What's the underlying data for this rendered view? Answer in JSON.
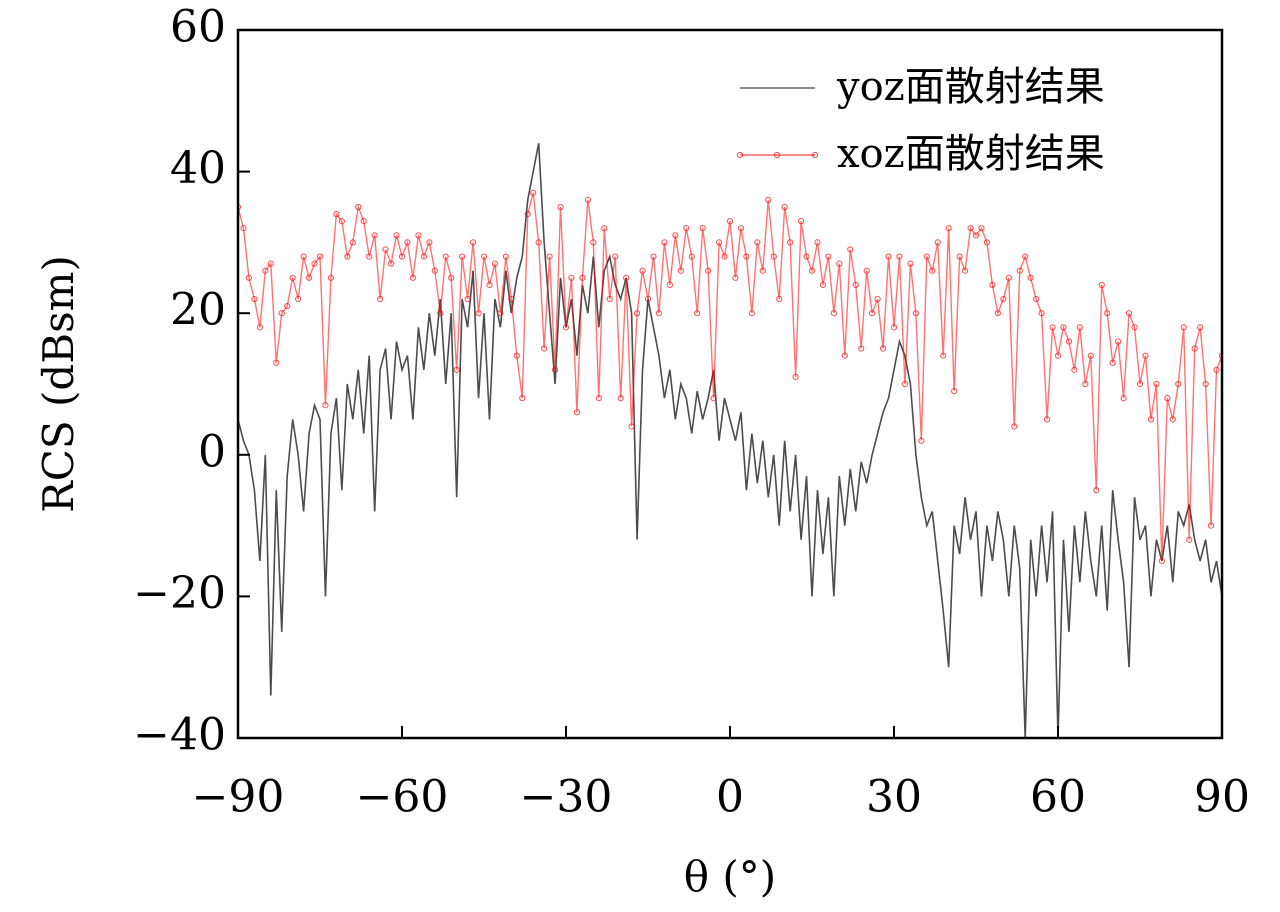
{
  "chart_data": {
    "type": "line",
    "xlabel": "θ (°)",
    "ylabel": "RCS (dBsm)",
    "xlim": [
      -90,
      90
    ],
    "ylim": [
      -40,
      60
    ],
    "xticks": [
      {
        "value": -90,
        "label": "−90"
      },
      {
        "value": -60,
        "label": "−60"
      },
      {
        "value": -30,
        "label": "−30"
      },
      0,
      30,
      60,
      90
    ],
    "yticks": [
      {
        "value": -40,
        "label": "−40"
      },
      {
        "value": -20,
        "label": "−20"
      },
      0,
      20,
      40,
      60
    ],
    "legend": "upper right",
    "x": [
      -90,
      -89,
      -88,
      -87,
      -86,
      -85,
      -84,
      -83,
      -82,
      -81,
      -80,
      -79,
      -78,
      -77,
      -76,
      -75,
      -74,
      -73,
      -72,
      -71,
      -70,
      -69,
      -68,
      -67,
      -66,
      -65,
      -64,
      -63,
      -62,
      -61,
      -60,
      -59,
      -58,
      -57,
      -56,
      -55,
      -54,
      -53,
      -52,
      -51,
      -50,
      -49,
      -48,
      -47,
      -46,
      -45,
      -44,
      -43,
      -42,
      -41,
      -40,
      -39,
      -38,
      -37,
      -36,
      -35,
      -34,
      -33,
      -32,
      -31,
      -30,
      -29,
      -28,
      -27,
      -26,
      -25,
      -24,
      -23,
      -22,
      -21,
      -20,
      -19,
      -18,
      -17,
      -16,
      -15,
      -14,
      -13,
      -12,
      -11,
      -10,
      -9,
      -8,
      -7,
      -6,
      -5,
      -4,
      -3,
      -2,
      -1,
      0,
      1,
      2,
      3,
      4,
      5,
      6,
      7,
      8,
      9,
      10,
      11,
      12,
      13,
      14,
      15,
      16,
      17,
      18,
      19,
      20,
      21,
      22,
      23,
      24,
      25,
      26,
      27,
      28,
      29,
      30,
      31,
      32,
      33,
      34,
      35,
      36,
      37,
      38,
      39,
      40,
      41,
      42,
      43,
      44,
      45,
      46,
      47,
      48,
      49,
      50,
      51,
      52,
      53,
      54,
      55,
      56,
      57,
      58,
      59,
      60,
      61,
      62,
      63,
      64,
      65,
      66,
      67,
      68,
      69,
      70,
      71,
      72,
      73,
      74,
      75,
      76,
      77,
      78,
      79,
      80,
      81,
      82,
      83,
      84,
      85,
      86,
      87,
      88,
      89,
      90
    ],
    "series": [
      {
        "name": "yoz面散射结果",
        "color": "#000000",
        "marker": false,
        "values": [
          5,
          2,
          0,
          -5,
          -15,
          0,
          -34,
          -5,
          -25,
          -3,
          5,
          0,
          -8,
          3,
          7,
          5,
          -20,
          3,
          8,
          -5,
          10,
          5,
          12,
          3,
          14,
          -8,
          12,
          15,
          5,
          16,
          12,
          14,
          5,
          18,
          12,
          20,
          14,
          22,
          10,
          20,
          -6,
          22,
          18,
          26,
          8,
          20,
          5,
          22,
          18,
          26,
          20,
          25,
          28,
          36,
          40,
          44,
          30,
          20,
          10,
          25,
          18,
          22,
          14,
          24,
          20,
          28,
          18,
          26,
          28,
          24,
          22,
          25,
          20,
          -12,
          12,
          22,
          18,
          14,
          8,
          12,
          5,
          10,
          8,
          3,
          9,
          5,
          8,
          12,
          2,
          8,
          5,
          2,
          6,
          -5,
          3,
          -4,
          2,
          -6,
          0,
          -10,
          2,
          -8,
          0,
          -12,
          -3,
          -20,
          -5,
          -14,
          -6,
          -20,
          -3,
          -10,
          -2,
          -8,
          -1,
          -4,
          0,
          3,
          6,
          8,
          12,
          16,
          14,
          10,
          0,
          -6,
          -10,
          -8,
          -15,
          -22,
          -30,
          -10,
          -14,
          -6,
          -12,
          -8,
          -20,
          -10,
          -15,
          -8,
          -12,
          -20,
          -10,
          -16,
          -40,
          -12,
          -20,
          -10,
          -18,
          -8,
          -40,
          -12,
          -25,
          -10,
          -18,
          -8,
          -15,
          -20,
          -10,
          -22,
          -5,
          -12,
          -18,
          -30,
          -6,
          -12,
          -10,
          -20,
          -12,
          -15,
          -10,
          -18,
          -8,
          -10,
          -7,
          -12,
          -15,
          -12,
          -18,
          -15,
          -20
        ]
      },
      {
        "name": "xoz面散射结果",
        "color": "#ff0000",
        "marker": true,
        "values": [
          35,
          32,
          25,
          22,
          18,
          26,
          27,
          13,
          20,
          21,
          25,
          22,
          28,
          25,
          27,
          28,
          7,
          25,
          34,
          33,
          28,
          30,
          35,
          33,
          28,
          31,
          22,
          29,
          27,
          31,
          28,
          30,
          25,
          31,
          28,
          30,
          26,
          20,
          28,
          25,
          12,
          28,
          22,
          30,
          20,
          28,
          24,
          27,
          20,
          28,
          22,
          14,
          8,
          34,
          37,
          30,
          15,
          28,
          12,
          35,
          18,
          25,
          6,
          25,
          36,
          30,
          8,
          32,
          22,
          28,
          8,
          25,
          4,
          20,
          26,
          22,
          28,
          20,
          30,
          24,
          31,
          26,
          32,
          28,
          20,
          32,
          26,
          8,
          30,
          28,
          33,
          25,
          32,
          28,
          20,
          30,
          26,
          36,
          28,
          22,
          35,
          30,
          11,
          33,
          28,
          26,
          30,
          24,
          28,
          20,
          27,
          14,
          29,
          24,
          15,
          26,
          20,
          22,
          15,
          28,
          18,
          28,
          10,
          27,
          20,
          2,
          28,
          26,
          30,
          14,
          32,
          9,
          28,
          26,
          32,
          31,
          32,
          30,
          24,
          20,
          22,
          25,
          4,
          26,
          28,
          25,
          22,
          20,
          5,
          18,
          14,
          18,
          16,
          12,
          18,
          10,
          14,
          -5,
          24,
          20,
          13,
          16,
          8,
          20,
          18,
          10,
          14,
          5,
          10,
          -15,
          8,
          5,
          10,
          18,
          -12,
          15,
          18,
          10,
          -10,
          12,
          14
        ]
      }
    ]
  }
}
